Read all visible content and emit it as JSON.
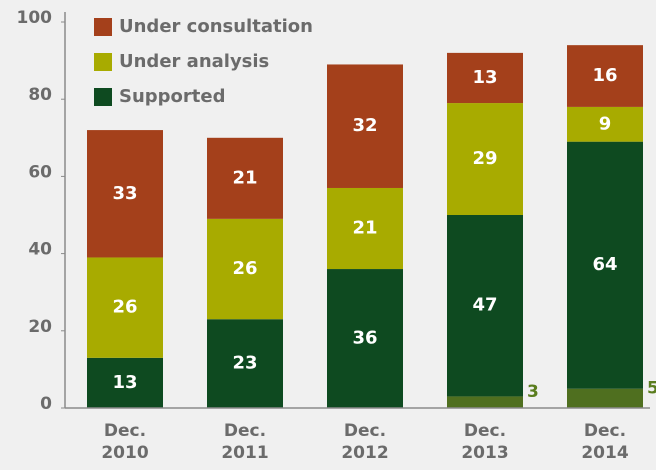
{
  "chart_data": {
    "type": "stacked_bar",
    "categories": [
      "Dec. 2010",
      "Dec. 2011",
      "Dec. 2012",
      "Dec. 2013",
      "Dec. 2014"
    ],
    "series": [
      {
        "color": "#4f6f1f",
        "values": [
          null,
          null,
          null,
          3,
          5
        ]
      },
      {
        "name": "Supported",
        "color": "#0e4a20",
        "values": [
          13,
          23,
          36,
          47,
          64
        ]
      },
      {
        "name": "Under analysis",
        "color": "#a8ab00",
        "values": [
          26,
          26,
          21,
          29,
          9
        ]
      },
      {
        "name": "Under consultation",
        "color": "#a4401b",
        "values": [
          33,
          21,
          32,
          13,
          16
        ]
      }
    ],
    "ylim": [
      0,
      100
    ],
    "yticks": [
      0,
      20,
      40,
      60,
      80,
      100
    ]
  }
}
